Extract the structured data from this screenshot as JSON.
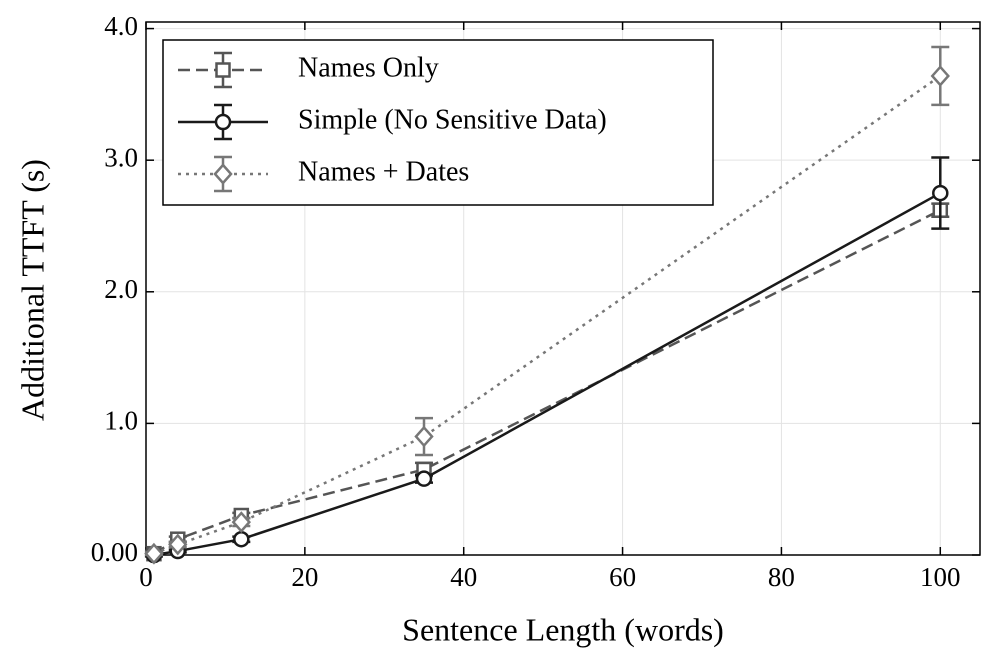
{
  "chart_data": {
    "type": "line",
    "x_label": "Sentence Length (words)",
    "y_label": "Additional TTFT (s)",
    "xlim": [
      0,
      105
    ],
    "ylim": [
      0,
      4.05
    ],
    "xticks": [
      0,
      20,
      40,
      60,
      80,
      100
    ],
    "yticks": [
      {
        "value": 0,
        "label": "0.00"
      },
      {
        "value": 1,
        "label": "1.0"
      },
      {
        "value": 2,
        "label": "2.0"
      },
      {
        "value": 3,
        "label": "3.0"
      },
      {
        "value": 4,
        "label": "4.0"
      }
    ],
    "grid": true,
    "legend": "upper left",
    "x": [
      1,
      4,
      12,
      35,
      100
    ],
    "series": [
      {
        "name": "Names Only",
        "color": "#555555",
        "marker": "square",
        "dash": "dashed",
        "values": [
          0.01,
          0.12,
          0.3,
          0.65,
          2.62
        ],
        "errors": [
          0.02,
          0.02,
          0.02,
          0.05,
          0.05
        ]
      },
      {
        "name": "Simple (No Sensitive Data)",
        "color": "#1a1a1a",
        "marker": "circle",
        "dash": "solid",
        "values": [
          0.0,
          0.03,
          0.12,
          0.58,
          2.75
        ],
        "errors": [
          0.01,
          0.01,
          0.02,
          0.03,
          0.27
        ]
      },
      {
        "name": "Names + Dates",
        "color": "#777777",
        "marker": "diamond",
        "dash": "dotted",
        "values": [
          0.01,
          0.08,
          0.25,
          0.9,
          3.64
        ],
        "errors": [
          0.01,
          0.02,
          0.03,
          0.14,
          0.22
        ]
      }
    ]
  }
}
